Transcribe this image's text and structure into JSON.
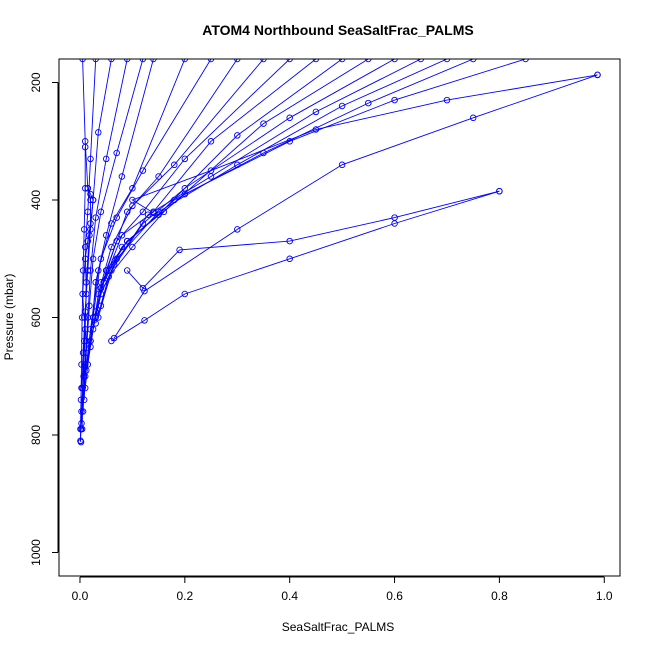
{
  "chart_data": {
    "type": "line",
    "title": "ATOM4 Northbound SeaSaltFrac_PALMS",
    "xlabel": "SeaSaltFrac_PALMS",
    "ylabel": "Pressure (mbar)",
    "xlim": [
      -0.04,
      1.03
    ],
    "ylim": [
      1040,
      160
    ],
    "y_reversed": true,
    "x_ticks": [
      "0.0",
      "0.2",
      "0.4",
      "0.6",
      "0.8",
      "1.0"
    ],
    "y_ticks": [
      "200",
      "400",
      "600",
      "800",
      "1000"
    ],
    "grid": false,
    "legend": "none",
    "series_color": "#0000ff",
    "marker": "open-circle",
    "series": [
      {
        "x": [
          0.005,
          0.01,
          0.015,
          0.02,
          0.02,
          0.015,
          0.01,
          0.005,
          0.008,
          0.012,
          0.01,
          0.005,
          0.003,
          0.002,
          0.001,
          0.002
        ],
        "y": [
          160,
          300,
          380,
          400,
          440,
          470,
          500,
          560,
          600,
          640,
          680,
          720,
          760,
          790,
          810,
          812
        ]
      },
      {
        "x": [
          0.03,
          0.02,
          0.015,
          0.01,
          0.012,
          0.008,
          0.005,
          0.003
        ],
        "y": [
          160,
          330,
          420,
          480,
          560,
          640,
          720,
          780
        ]
      },
      {
        "x": [
          0.06,
          0.035,
          0.025,
          0.018,
          0.012,
          0.01,
          0.007,
          0.004
        ],
        "y": [
          160,
          285,
          400,
          460,
          540,
          620,
          700,
          790
        ]
      },
      {
        "x": [
          0.09,
          0.05,
          0.03,
          0.02,
          0.015,
          0.01,
          0.006
        ],
        "y": [
          160,
          330,
          430,
          520,
          600,
          680,
          760
        ]
      },
      {
        "x": [
          0.12,
          0.07,
          0.04,
          0.025,
          0.018,
          0.012,
          0.008
        ],
        "y": [
          160,
          320,
          420,
          500,
          580,
          660,
          740
        ]
      },
      {
        "x": [
          0.14,
          0.08,
          0.05,
          0.03,
          0.02,
          0.01
        ],
        "y": [
          160,
          360,
          460,
          540,
          640,
          720
        ]
      },
      {
        "x": [
          0.2,
          0.1,
          0.06,
          0.035,
          0.02,
          0.01
        ],
        "y": [
          160,
          380,
          440,
          520,
          620,
          700
        ]
      },
      {
        "x": [
          0.25,
          0.12,
          0.07,
          0.04,
          0.025,
          0.012
        ],
        "y": [
          160,
          350,
          430,
          500,
          600,
          690
        ]
      },
      {
        "x": [
          0.3,
          0.15,
          0.09,
          0.05,
          0.03,
          0.015
        ],
        "y": [
          160,
          360,
          420,
          520,
          590,
          680
        ]
      },
      {
        "x": [
          0.35,
          0.18,
          0.1,
          0.06,
          0.035,
          0.02
        ],
        "y": [
          160,
          340,
          410,
          480,
          560,
          650
        ]
      },
      {
        "x": [
          0.4,
          0.2,
          0.12,
          0.07,
          0.04,
          0.02
        ],
        "y": [
          160,
          330,
          420,
          470,
          550,
          640
        ]
      },
      {
        "x": [
          0.45,
          0.25,
          0.14,
          0.08,
          0.045,
          0.025
        ],
        "y": [
          160,
          300,
          420,
          460,
          540,
          620
        ]
      },
      {
        "x": [
          0.5,
          0.3,
          0.15,
          0.09,
          0.05,
          0.03
        ],
        "y": [
          160,
          290,
          425,
          470,
          520,
          600
        ]
      },
      {
        "x": [
          0.55,
          0.35,
          0.16,
          0.1,
          0.055,
          0.03
        ],
        "y": [
          160,
          270,
          420,
          480,
          530,
          610
        ]
      },
      {
        "x": [
          0.6,
          0.4,
          0.2,
          0.12,
          0.06,
          0.035
        ],
        "y": [
          160,
          260,
          380,
          440,
          520,
          600
        ]
      },
      {
        "x": [
          0.65,
          0.45,
          0.25,
          0.13,
          0.065,
          0.04
        ],
        "y": [
          160,
          250,
          360,
          425,
          510,
          580
        ]
      },
      {
        "x": [
          0.7,
          0.5,
          0.3,
          0.15,
          0.07,
          0.04
        ],
        "y": [
          160,
          240,
          340,
          420,
          500,
          560
        ]
      },
      {
        "x": [
          0.75,
          0.55,
          0.35,
          0.18,
          0.08,
          0.04
        ],
        "y": [
          160,
          235,
          320,
          400,
          480,
          550
        ]
      },
      {
        "x": [
          0.85,
          0.6,
          0.4,
          0.2,
          0.09,
          0.04
        ],
        "y": [
          160,
          230,
          300,
          390,
          470,
          540
        ]
      },
      {
        "x": [
          0.987,
          0.7,
          0.45,
          0.25,
          0.1,
          0.14
        ],
        "y": [
          187,
          230,
          280,
          350,
          400,
          422
        ]
      },
      {
        "x": [
          0.987,
          0.75,
          0.5,
          0.3,
          0.123,
          0.065
        ],
        "y": [
          187,
          260,
          340,
          450,
          555,
          635
        ]
      },
      {
        "x": [
          0.8,
          0.6,
          0.4,
          0.19,
          0.12,
          0.09
        ],
        "y": [
          385,
          430,
          470,
          485,
          550,
          520
        ]
      },
      {
        "x": [
          0.8,
          0.6,
          0.4,
          0.2,
          0.123,
          0.06
        ],
        "y": [
          385,
          440,
          500,
          560,
          605,
          640
        ]
      },
      {
        "x": [
          0.01,
          0.01,
          0.008,
          0.006,
          0.004,
          0.003,
          0.002,
          0.001,
          0.001
        ],
        "y": [
          310,
          380,
          450,
          520,
          600,
          680,
          740,
          790,
          810
        ]
      },
      {
        "x": [
          0.015,
          0.02,
          0.025,
          0.02,
          0.015,
          0.01,
          0.006,
          0.003
        ],
        "y": [
          380,
          390,
          400,
          450,
          520,
          590,
          660,
          720
        ]
      }
    ]
  }
}
